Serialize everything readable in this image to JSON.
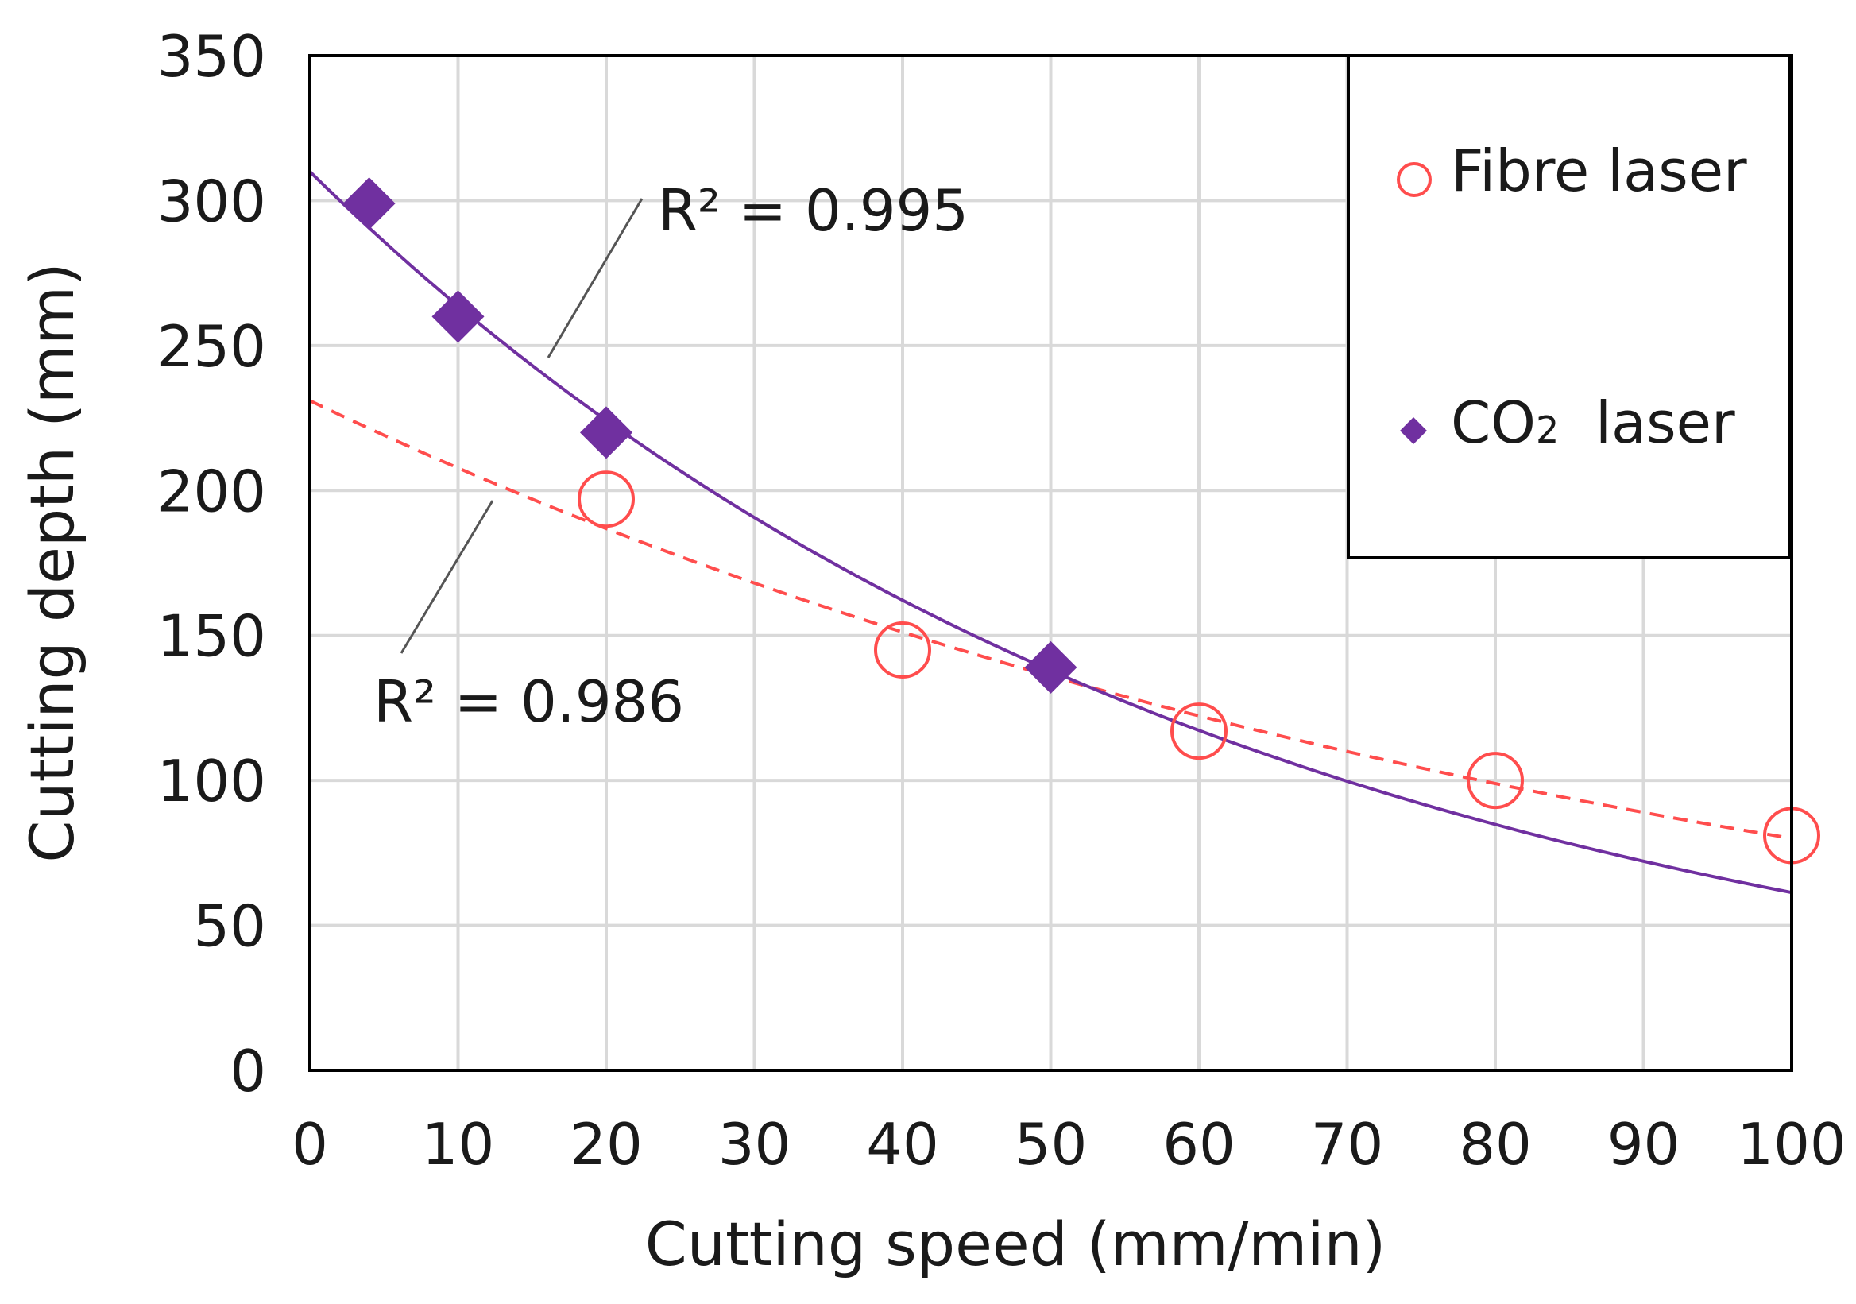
{
  "chart_data": {
    "type": "scatter",
    "title": "",
    "xlabel": "Cutting speed (mm/min)",
    "ylabel": "Cutting depth (mm)",
    "xlim": [
      0,
      100
    ],
    "ylim": [
      0,
      350
    ],
    "xticks": [
      "0",
      "10",
      "20",
      "30",
      "40",
      "50",
      "60",
      "70",
      "80",
      "90",
      "100"
    ],
    "yticks": [
      "0",
      "50",
      "100",
      "150",
      "200",
      "250",
      "300",
      "350"
    ],
    "grid": true,
    "legend_position": "top-right",
    "series": [
      {
        "name": "Fibre laser",
        "color": "#ff4d4d",
        "marker": "open-circle",
        "points": [
          [
            20,
            197
          ],
          [
            40,
            145
          ],
          [
            60,
            117
          ],
          [
            80,
            100
          ],
          [
            100,
            81
          ]
        ],
        "trendline": {
          "style": "dashed",
          "a": 231,
          "b": -0.0106,
          "r2_label": "R² = 0.986"
        }
      },
      {
        "name": "CO2 laser",
        "legend_main": "CO",
        "legend_sub": "2",
        "legend_tail": "  laser",
        "color": "#7030a0",
        "marker": "diamond",
        "points": [
          [
            4,
            299
          ],
          [
            10,
            260
          ],
          [
            20,
            220
          ],
          [
            50,
            139
          ]
        ],
        "trendline": {
          "style": "solid",
          "a": 310,
          "b": -0.0162,
          "r2_label": "R² = 0.995"
        }
      }
    ]
  }
}
